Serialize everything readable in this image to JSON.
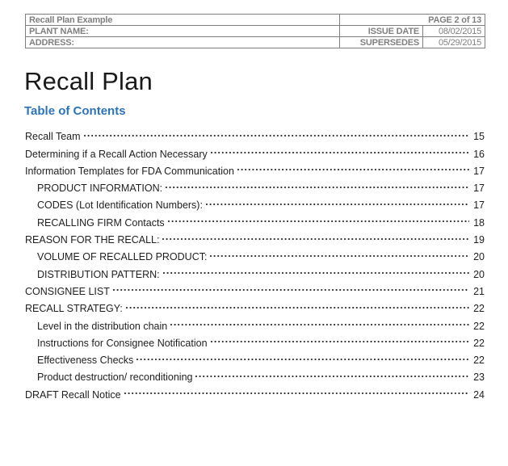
{
  "header": {
    "doc_label": "Recall Plan Example",
    "page_label": "PAGE 2 of 13",
    "rows": [
      {
        "label": "PLANT NAME:",
        "field": "ISSUE DATE",
        "value": "08/02/2015"
      },
      {
        "label": "ADDRESS:",
        "field": "SUPERSEDES",
        "value": "05/29/2015"
      }
    ]
  },
  "body": {
    "title": "Recall Plan",
    "toc": {
      "heading": "Table of Contents",
      "entries": [
        {
          "label": "Recall Team",
          "page": "15",
          "level": 1
        },
        {
          "label": "Determining if a Recall Action Necessary",
          "page": "16",
          "level": 1
        },
        {
          "label": "Information Templates for FDA Communication",
          "page": "17",
          "level": 1
        },
        {
          "label": "PRODUCT INFORMATION:",
          "page": "17",
          "level": 2
        },
        {
          "label": "CODES (Lot Identification Numbers):",
          "page": "17",
          "level": 2
        },
        {
          "label": "RECALLING FIRM Contacts",
          "page": "18",
          "level": 2
        },
        {
          "label": "REASON FOR THE RECALL:",
          "page": "19",
          "level": 1
        },
        {
          "label": "VOLUME OF RECALLED PRODUCT:",
          "page": "20",
          "level": 2
        },
        {
          "label": "DISTRIBUTION PATTERN:",
          "page": "20",
          "level": 2
        },
        {
          "label": "CONSIGNEE LIST",
          "page": "21",
          "level": 1
        },
        {
          "label": "RECALL STRATEGY:",
          "page": "22",
          "level": 1
        },
        {
          "label": "Level in the distribution chain",
          "page": "22",
          "level": 2
        },
        {
          "label": "Instructions for Consignee Notification",
          "page": "22",
          "level": 2
        },
        {
          "label": "Effectiveness Checks",
          "page": "22",
          "level": 2
        },
        {
          "label": "Product destruction/ reconditioning",
          "page": "23",
          "level": 2
        },
        {
          "label": "DRAFT Recall Notice",
          "page": "24",
          "level": 1
        }
      ]
    }
  },
  "colors": {
    "header_text": "#808080",
    "table_border": "#7f7f7f",
    "heading_accent": "#2e74b5",
    "body_text": "#1f1f1f",
    "title_text": "#1a1a1a"
  }
}
